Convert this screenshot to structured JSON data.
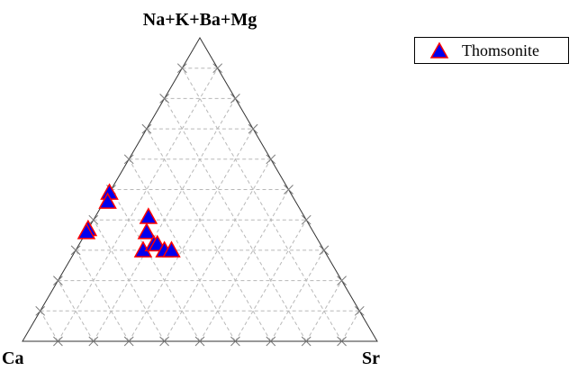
{
  "chart_data": {
    "type": "ternary-scatter",
    "apex_labels": {
      "top": "Na+K+Ba+Mg",
      "left": "Ca",
      "right": "Sr"
    },
    "grid": true,
    "grid_divisions": 10,
    "legend": {
      "placement": "top-right",
      "entries": [
        "Thomsonite"
      ]
    },
    "series": [
      {
        "name": "Thomsonite",
        "marker": "triangle",
        "fill": "#0000ee",
        "stroke": "#ff0000",
        "points": [
          {
            "top": 0.49,
            "left": 0.51,
            "right": 0.0
          },
          {
            "top": 0.46,
            "left": 0.53,
            "right": 0.01
          },
          {
            "top": 0.37,
            "left": 0.63,
            "right": 0.0
          },
          {
            "top": 0.36,
            "left": 0.64,
            "right": 0.0
          },
          {
            "top": 0.41,
            "left": 0.44,
            "right": 0.15
          },
          {
            "top": 0.36,
            "left": 0.47,
            "right": 0.17
          },
          {
            "top": 0.3,
            "left": 0.51,
            "right": 0.19
          },
          {
            "top": 0.32,
            "left": 0.47,
            "right": 0.21
          },
          {
            "top": 0.32,
            "left": 0.46,
            "right": 0.22
          },
          {
            "top": 0.3,
            "left": 0.45,
            "right": 0.25
          },
          {
            "top": 0.3,
            "left": 0.43,
            "right": 0.27
          }
        ]
      }
    ]
  }
}
